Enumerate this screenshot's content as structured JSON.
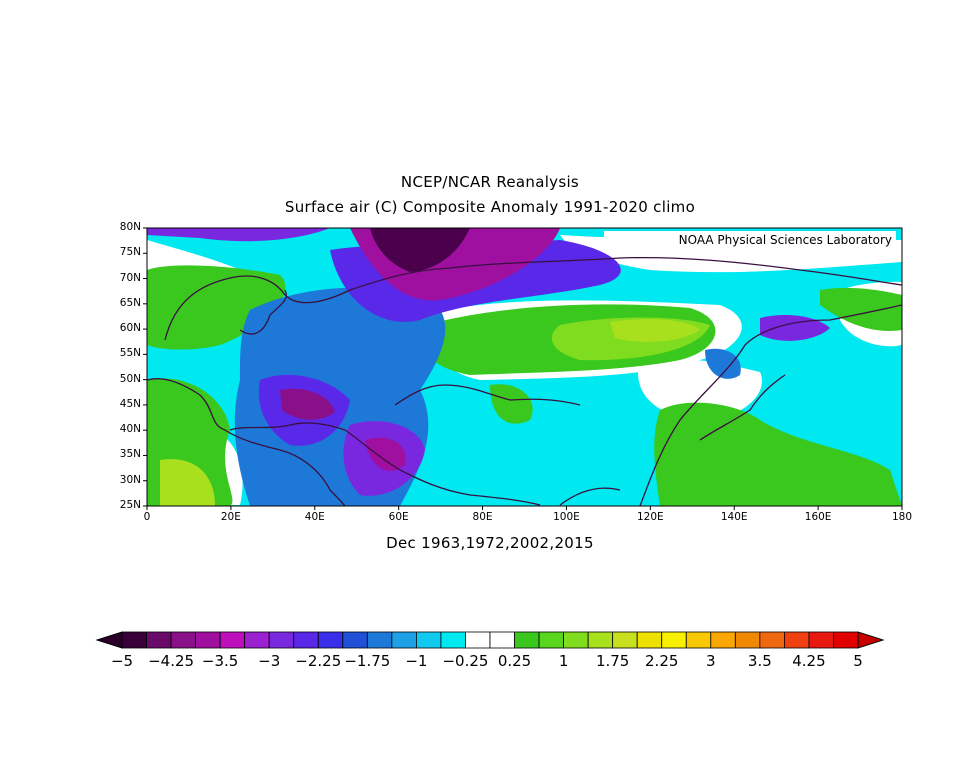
{
  "header": {
    "title": "NCEP/NCAR Reanalysis",
    "subtitle": "Surface air (C) Composite Anomaly 1991-2020 climo"
  },
  "map": {
    "credit": "NOAA Physical Sciences Laboratory",
    "caption": "Dec 1963,1972,2002,2015",
    "lat_labels": [
      "80N",
      "75N",
      "70N",
      "65N",
      "60N",
      "55N",
      "50N",
      "45N",
      "40N",
      "35N",
      "30N",
      "25N"
    ],
    "lon_labels": [
      "0",
      "20E",
      "40E",
      "60E",
      "80E",
      "100E",
      "120E",
      "140E",
      "160E",
      "180"
    ],
    "extent": {
      "lon_min": 0,
      "lon_max": 180,
      "lat_min": 25,
      "lat_max": 80
    },
    "background_color": "#00e5ff"
  },
  "colorbar": {
    "labels": [
      "-5",
      "-4.25",
      "-3.5",
      "-3",
      "-2.25",
      "-1.75",
      "-1",
      "-0.25",
      "0.25",
      "1",
      "1.75",
      "2.25",
      "3",
      "3.5",
      "4.25",
      "5"
    ],
    "colors": [
      "#3a003a",
      "#6a0a6a",
      "#8a108a",
      "#a010a0",
      "#bc10bc",
      "#9a20d0",
      "#7a28e0",
      "#5a28e8",
      "#3a2ee8",
      "#1e50d8",
      "#1e78d8",
      "#1ea0e6",
      "#10c8f0",
      "#00e8f0",
      "#ffffff",
      "#ffffff",
      "#3ac81e",
      "#58d61e",
      "#80dc1e",
      "#a8e01e",
      "#c8e01e",
      "#f0e000",
      "#f8f000",
      "#f8c800",
      "#f8a800",
      "#f08800",
      "#f06810",
      "#f04010",
      "#e81810",
      "#e00000"
    ],
    "left_arrow_color": "#2a0028",
    "right_arrow_color": "#c80000"
  }
}
